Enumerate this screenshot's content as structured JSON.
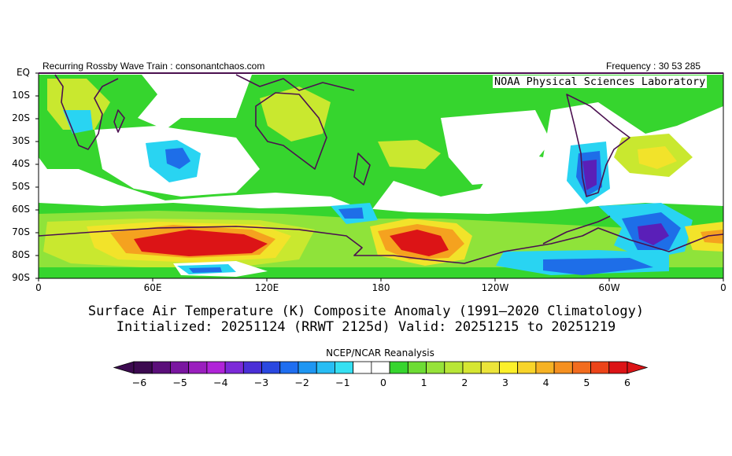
{
  "header": {
    "left": "Recurring Rossby Wave Train : consonantchaos.com",
    "right": "Frequency : 30 53 285"
  },
  "attribution": "NOAA Physical Sciences Laboratory",
  "map": {
    "lat_labels": [
      "EQ",
      "10S",
      "20S",
      "30S",
      "40S",
      "50S",
      "60S",
      "70S",
      "80S",
      "90S"
    ],
    "lon_labels": [
      "0",
      "60E",
      "120E",
      "180",
      "120W",
      "60W",
      "0"
    ],
    "colors": {
      "coast": "#4b1050",
      "green": "#36d52e",
      "lightgreen": "#8fe33a",
      "yellowgreen": "#c9e82f",
      "yellow": "#f2e32a",
      "orange": "#f5a21f",
      "red": "#dc1416",
      "cyan": "#29d4f2",
      "blue": "#1e6ee8",
      "purple": "#5a1fb8",
      "white": "#ffffff"
    }
  },
  "title": {
    "line1": "Surface Air Temperature (K) Composite Anomaly (1991–2020 Climatology)",
    "line2": "Initialized: 20251124 (RRWT 2125d) Valid: 20251215 to 20251219"
  },
  "legend": {
    "source": "NCEP/NCAR Reanalysis",
    "colors": [
      "#3c0a50",
      "#5b0f7a",
      "#7a16a0",
      "#9a1fbe",
      "#b024d8",
      "#7c2ad8",
      "#4a2fd6",
      "#2a48e0",
      "#1f6ef0",
      "#1e96f2",
      "#28bdf4",
      "#36e0f2",
      "#ffffff",
      "#ffffff",
      "#36d52e",
      "#6ddc34",
      "#96e23a",
      "#b8e637",
      "#d6e632",
      "#ece43a",
      "#fcf02a",
      "#f8d42a",
      "#f6b224",
      "#f59020",
      "#f26c1e",
      "#ec4419",
      "#dc1416"
    ],
    "ticks": [
      "−6",
      "−5",
      "−4",
      "−3",
      "−2",
      "−1",
      "0",
      "1",
      "2",
      "3",
      "4",
      "5",
      "6"
    ]
  }
}
